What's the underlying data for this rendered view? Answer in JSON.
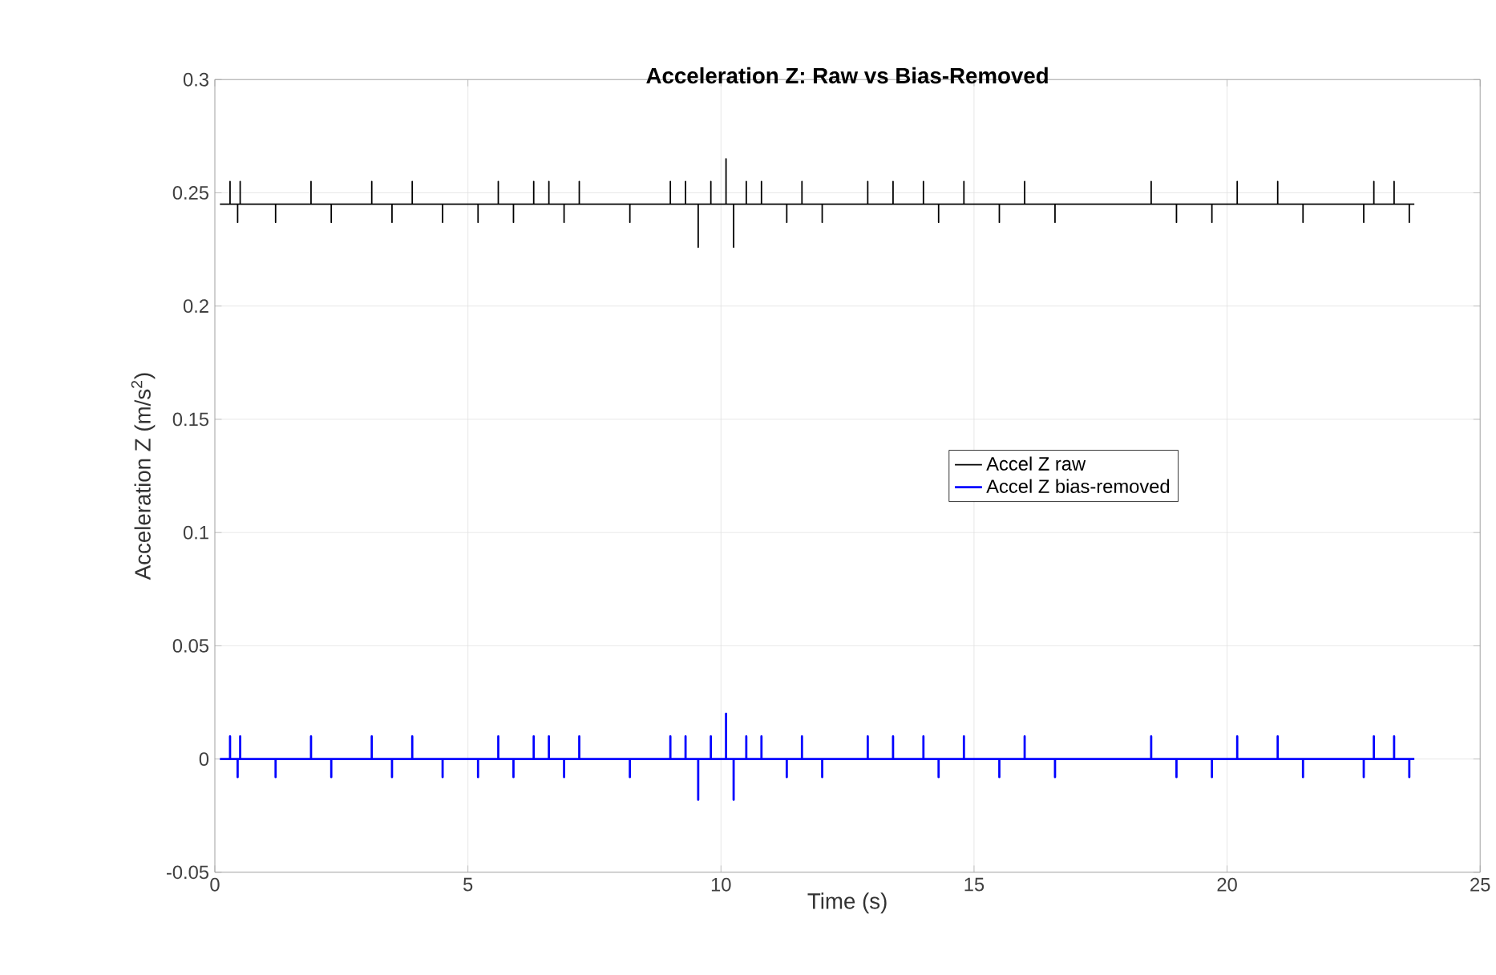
{
  "chart_data": {
    "type": "line",
    "title": "Acceleration Z: Raw vs Bias-Removed",
    "xlabel": "Time (s)",
    "ylabel": "Acceleration Z (m/s$^{2}$)",
    "xlim": [
      0,
      25
    ],
    "xticks": [
      0,
      5,
      10,
      15,
      20,
      25
    ],
    "ylim": [
      -0.05,
      0.3
    ],
    "yticks": [
      -0.05,
      0,
      0.05,
      0.1,
      0.15,
      0.2,
      0.25,
      0.3
    ],
    "grid": true,
    "legend": "right",
    "x": [
      0.1,
      0.3,
      0.3,
      0.3,
      0.45,
      0.45,
      0.45,
      0.5,
      0.5,
      0.5,
      1.2,
      1.2,
      1.2,
      1.9,
      1.9,
      1.9,
      2.3,
      2.3,
      2.3,
      3.1,
      3.1,
      3.1,
      3.5,
      3.5,
      3.5,
      3.9,
      3.9,
      3.9,
      4.5,
      4.5,
      4.5,
      5.2,
      5.2,
      5.2,
      5.6,
      5.6,
      5.6,
      5.9,
      5.9,
      5.9,
      6.3,
      6.3,
      6.3,
      6.6,
      6.6,
      6.6,
      6.9,
      6.9,
      6.9,
      7.2,
      7.2,
      7.2,
      8.2,
      8.2,
      8.2,
      9.0,
      9.0,
      9.0,
      9.3,
      9.3,
      9.3,
      9.55,
      9.55,
      9.55,
      9.8,
      9.8,
      9.8,
      10.1,
      10.1,
      10.1,
      10.25,
      10.25,
      10.25,
      10.5,
      10.5,
      10.5,
      10.8,
      10.8,
      10.8,
      11.3,
      11.3,
      11.3,
      11.6,
      11.6,
      11.6,
      12.0,
      12.0,
      12.0,
      12.9,
      12.9,
      12.9,
      13.4,
      13.4,
      13.4,
      14.0,
      14.0,
      14.0,
      14.3,
      14.3,
      14.3,
      14.8,
      14.8,
      14.8,
      15.5,
      15.5,
      15.5,
      16.0,
      16.0,
      16.0,
      16.6,
      16.6,
      16.6,
      18.5,
      18.5,
      18.5,
      19.0,
      19.0,
      19.0,
      19.7,
      19.7,
      19.7,
      20.2,
      20.2,
      20.2,
      21.0,
      21.0,
      21.0,
      21.5,
      21.5,
      21.5,
      22.7,
      22.7,
      22.7,
      22.9,
      22.9,
      22.9,
      23.3,
      23.3,
      23.3,
      23.6,
      23.6,
      23.6,
      23.7
    ],
    "series": [
      {
        "name": "Accel Z raw",
        "color": "#000000",
        "values": [
          0.245,
          0.245,
          0.255,
          0.245,
          0.245,
          0.237,
          0.245,
          0.245,
          0.255,
          0.245,
          0.245,
          0.237,
          0.245,
          0.245,
          0.255,
          0.245,
          0.245,
          0.237,
          0.245,
          0.245,
          0.255,
          0.245,
          0.245,
          0.237,
          0.245,
          0.245,
          0.255,
          0.245,
          0.245,
          0.237,
          0.245,
          0.245,
          0.237,
          0.245,
          0.245,
          0.255,
          0.245,
          0.245,
          0.237,
          0.245,
          0.245,
          0.255,
          0.245,
          0.245,
          0.255,
          0.245,
          0.245,
          0.237,
          0.245,
          0.245,
          0.255,
          0.245,
          0.245,
          0.237,
          0.245,
          0.245,
          0.255,
          0.245,
          0.245,
          0.255,
          0.245,
          0.245,
          0.226,
          0.245,
          0.245,
          0.255,
          0.245,
          0.245,
          0.265,
          0.245,
          0.245,
          0.226,
          0.245,
          0.245,
          0.255,
          0.245,
          0.245,
          0.255,
          0.245,
          0.245,
          0.237,
          0.245,
          0.245,
          0.255,
          0.245,
          0.245,
          0.237,
          0.245,
          0.245,
          0.255,
          0.245,
          0.245,
          0.255,
          0.245,
          0.245,
          0.255,
          0.245,
          0.245,
          0.237,
          0.245,
          0.245,
          0.255,
          0.245,
          0.245,
          0.237,
          0.245,
          0.245,
          0.255,
          0.245,
          0.245,
          0.237,
          0.245,
          0.245,
          0.255,
          0.245,
          0.245,
          0.237,
          0.245,
          0.245,
          0.237,
          0.245,
          0.245,
          0.255,
          0.245,
          0.245,
          0.255,
          0.245,
          0.245,
          0.237,
          0.245,
          0.245,
          0.237,
          0.245,
          0.245,
          0.255,
          0.245,
          0.245,
          0.255,
          0.245,
          0.245,
          0.237,
          0.245,
          0.245
        ]
      },
      {
        "name": "Accel Z bias-removed",
        "color": "#0000ff",
        "values": [
          0,
          0,
          0.01,
          0,
          0,
          -0.008,
          0,
          0,
          0.01,
          0,
          0,
          -0.008,
          0,
          0,
          0.01,
          0,
          0,
          -0.008,
          0,
          0,
          0.01,
          0,
          0,
          -0.008,
          0,
          0,
          0.01,
          0,
          0,
          -0.008,
          0,
          0,
          -0.008,
          0,
          0,
          0.01,
          0,
          0,
          -0.008,
          0,
          0,
          0.01,
          0,
          0,
          0.01,
          0,
          0,
          -0.008,
          0,
          0,
          0.01,
          0,
          0,
          -0.008,
          0,
          0,
          0.01,
          0,
          0,
          0.01,
          0,
          0,
          -0.018,
          0,
          0,
          0.01,
          0,
          0,
          0.02,
          0,
          0,
          -0.018,
          0,
          0,
          0.01,
          0,
          0,
          0.01,
          0,
          0,
          -0.008,
          0,
          0,
          0.01,
          0,
          0,
          -0.008,
          0,
          0,
          0.01,
          0,
          0,
          0.01,
          0,
          0,
          0.01,
          0,
          0,
          -0.008,
          0,
          0,
          0.01,
          0,
          0,
          -0.008,
          0,
          0,
          0.01,
          0,
          0,
          -0.008,
          0,
          0,
          0.01,
          0,
          0,
          -0.008,
          0,
          0,
          -0.008,
          0,
          0,
          0.01,
          0,
          0,
          0.01,
          0,
          0,
          -0.008,
          0,
          0,
          -0.008,
          0,
          0,
          0.01,
          0,
          0,
          0.01,
          0,
          0,
          -0.008,
          0,
          0
        ]
      }
    ]
  }
}
